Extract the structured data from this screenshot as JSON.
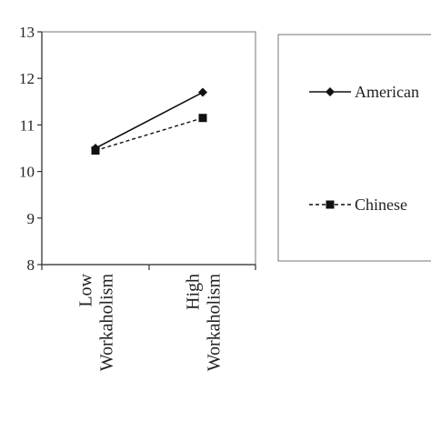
{
  "chart_data": {
    "type": "line",
    "categories": [
      "Low Workaholism",
      "High Workaholism"
    ],
    "category_lines": [
      [
        "Low",
        "Workaholism"
      ],
      [
        "High",
        "Workaholism"
      ]
    ],
    "series": [
      {
        "name": "American",
        "values": [
          10.5,
          11.7
        ],
        "marker": "diamond",
        "line": "solid",
        "color": "#111111"
      },
      {
        "name": "Chinese",
        "values": [
          10.45,
          11.15
        ],
        "marker": "square",
        "line": "dashed",
        "color": "#111111"
      }
    ],
    "ylim": [
      8,
      13
    ],
    "yticks": [
      "8",
      "9",
      "10",
      "11",
      "12",
      "13"
    ],
    "grid": false,
    "legend_position": "right"
  }
}
